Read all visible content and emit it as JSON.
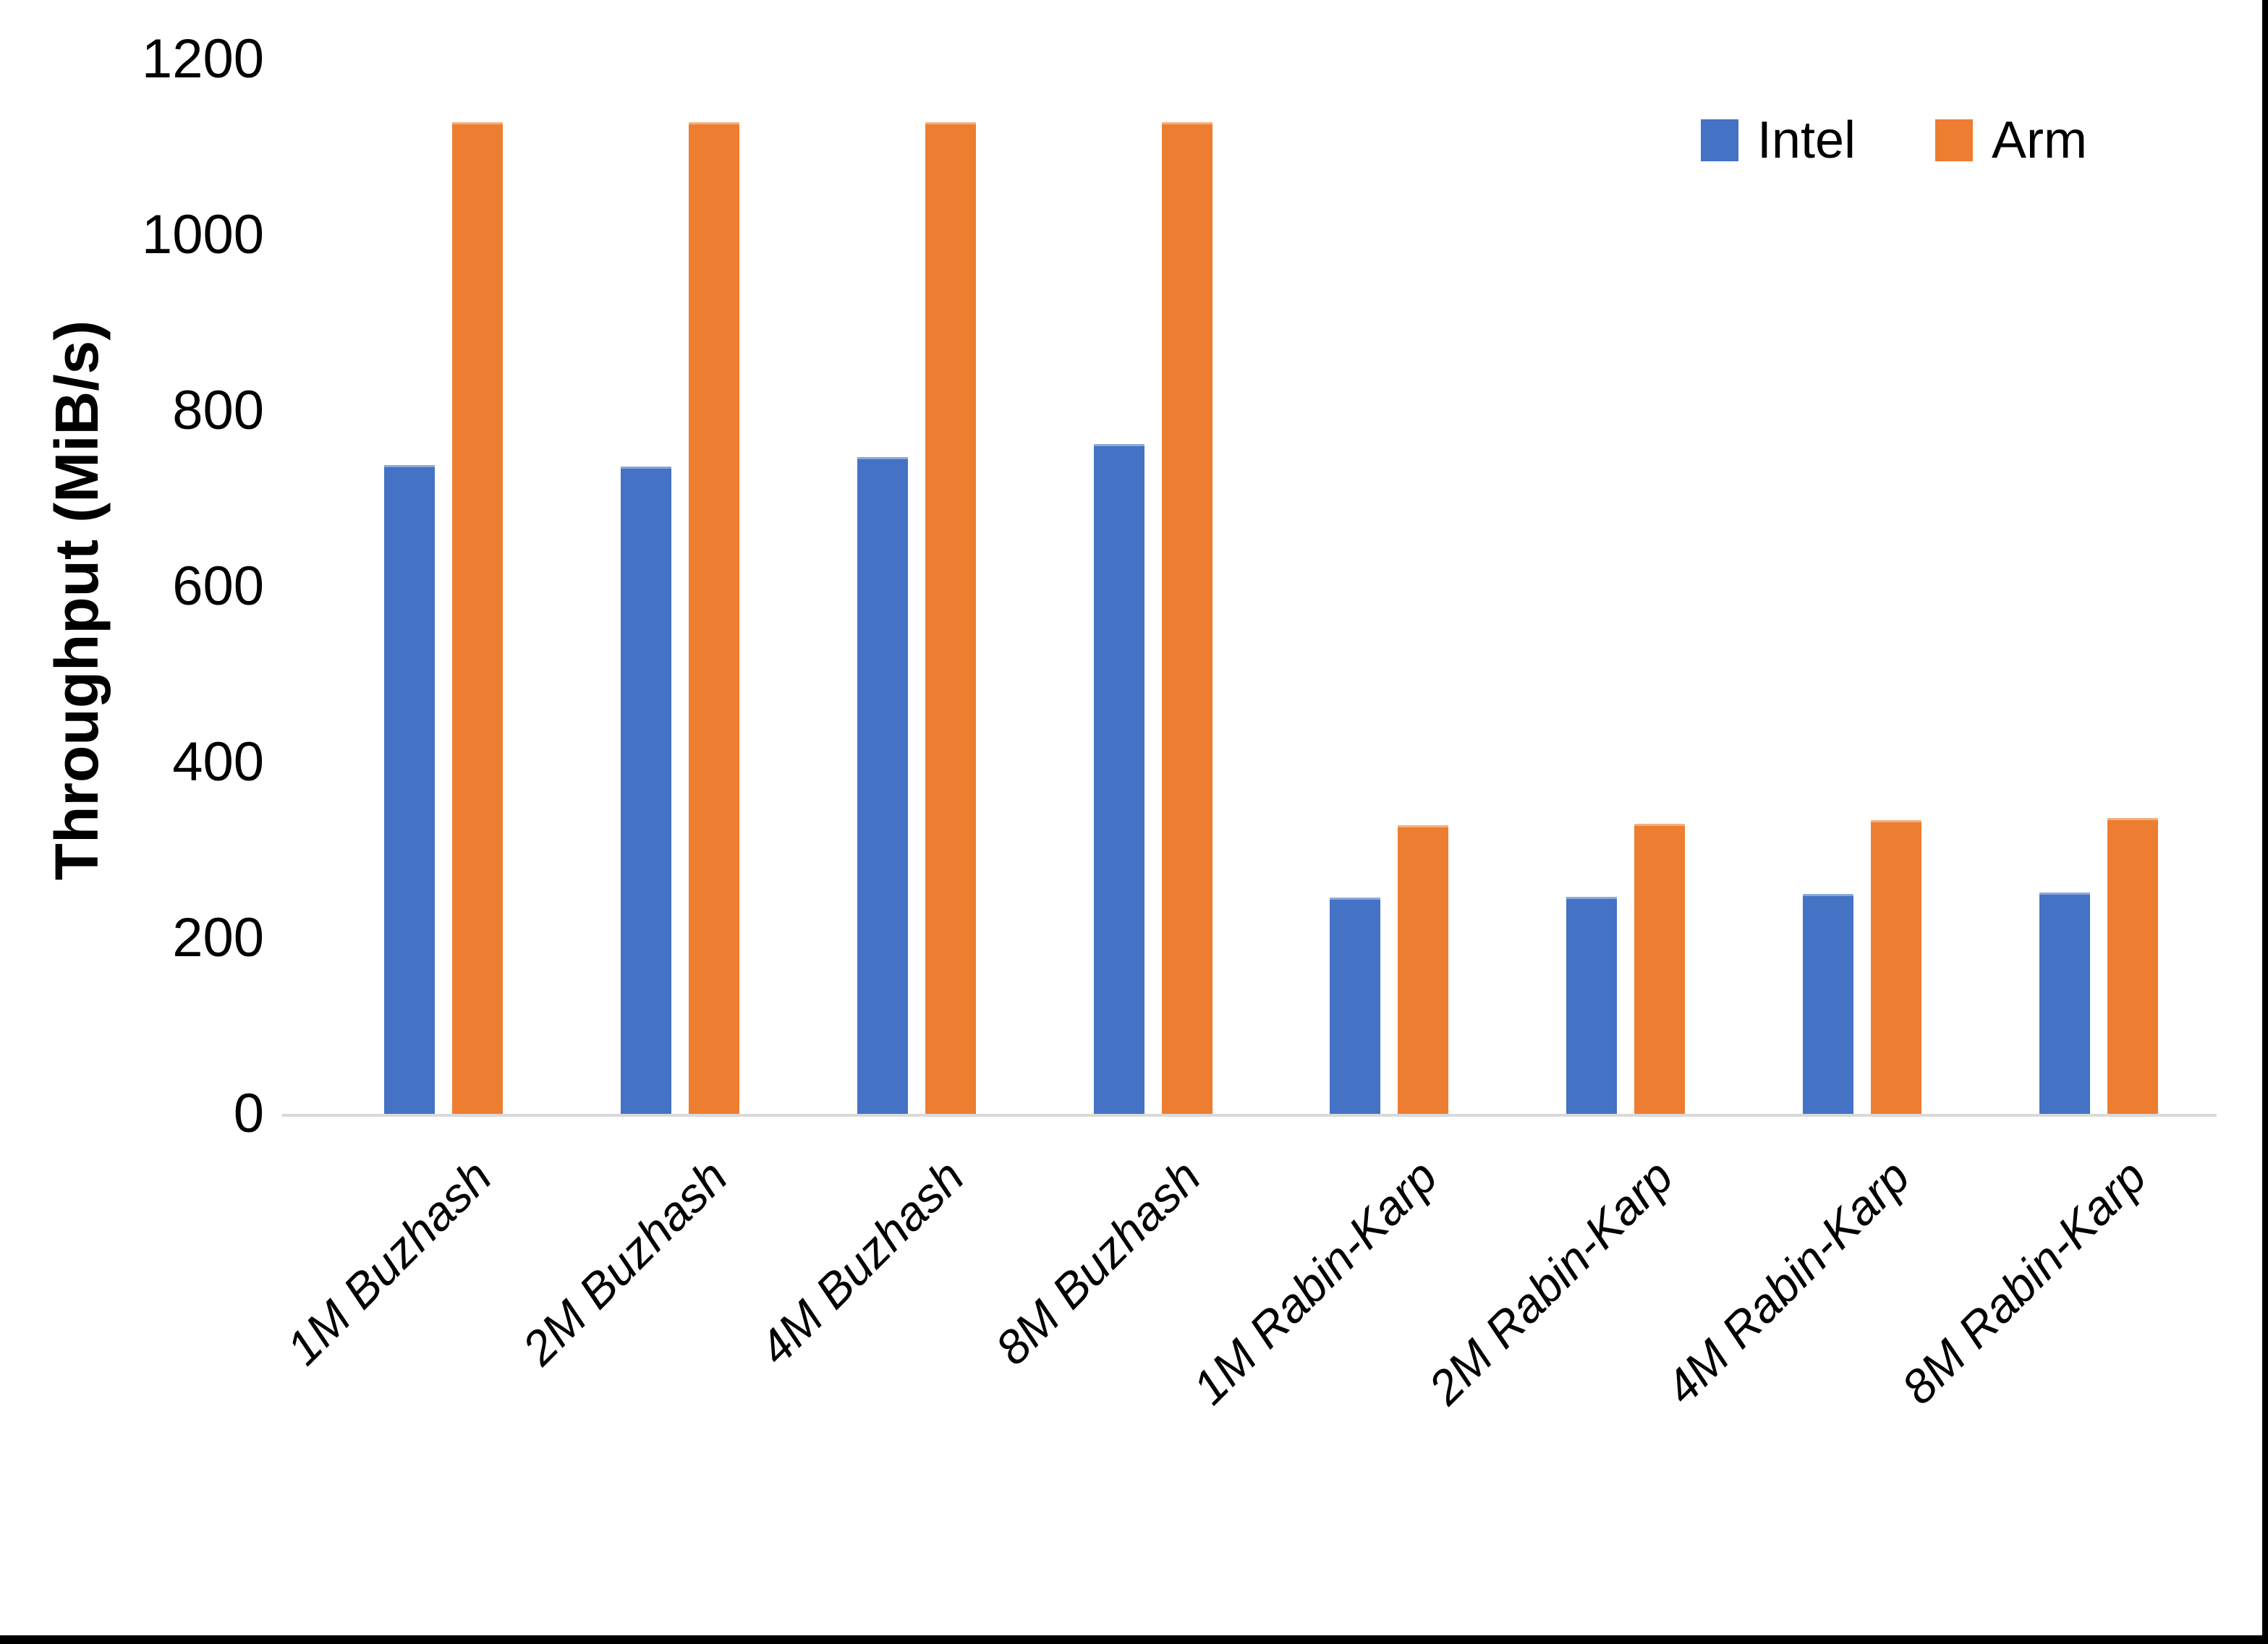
{
  "chart_data": {
    "type": "bar",
    "title": "",
    "xlabel": "",
    "ylabel": "Throughput (MiB/s)",
    "ylim": [
      0,
      1200
    ],
    "yticks": [
      0,
      200,
      400,
      600,
      800,
      1000,
      1200
    ],
    "grid": false,
    "legend_position": "top-right",
    "categories": [
      "1M Buzhash",
      "2M Buzhash",
      "4M Buzhash",
      "8M Buzhash",
      "1M Rabin-Karp",
      "2M Rabin-Karp",
      "4M Rabin-Karp",
      "8M Rabin-Karp"
    ],
    "series": [
      {
        "name": "Intel",
        "color": "#4472C4",
        "values": [
          738,
          737,
          747,
          762,
          246,
          247,
          250,
          252
        ]
      },
      {
        "name": "Arm",
        "color": "#ED7D31",
        "values": [
          1128,
          1128,
          1128,
          1128,
          328,
          330,
          334,
          337
        ]
      }
    ]
  },
  "axis": {
    "baseline_color": "#d9d9d9",
    "text_color": "#000000"
  }
}
